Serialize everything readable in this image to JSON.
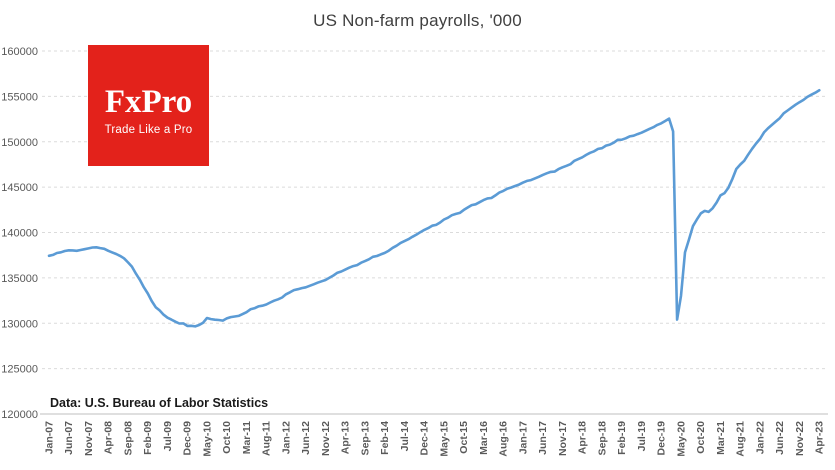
{
  "title": "US Non-farm payrolls, '000",
  "source_note": "Data: U.S. Bureau of Labor Statistics",
  "logo": {
    "name": "FxPro",
    "tagline": "Trade Like a Pro",
    "background_color": "#e3221b",
    "text_color": "#ffffff"
  },
  "chart_data": {
    "type": "line",
    "title": "US Non-farm payrolls, '000",
    "xlabel": "",
    "ylabel": "",
    "x_start": "Jan-07",
    "x_end": "Apr-23",
    "x_frequency": "monthly",
    "x_tick_interval_months": 5,
    "x_tick_labels": [
      "Jan-07",
      "Jun-07",
      "Nov-07",
      "Apr-08",
      "Sep-08",
      "Feb-09",
      "Jul-09",
      "Dec-09",
      "May-10",
      "Oct-10",
      "Mar-11",
      "Aug-11",
      "Jan-12",
      "Jun-12",
      "Nov-12",
      "Apr-13",
      "Sep-13",
      "Feb-14",
      "Jul-14",
      "Dec-14",
      "May-15",
      "Oct-15",
      "Mar-16",
      "Aug-16",
      "Jan-17",
      "Jun-17",
      "Nov-17",
      "Apr-18",
      "Sep-18",
      "Feb-19",
      "Jul-19",
      "Dec-19",
      "May-20",
      "Oct-20",
      "Mar-21",
      "Aug-21",
      "Jan-22",
      "Jun-22",
      "Nov-22",
      "Apr-23"
    ],
    "ylim": [
      120000,
      160000
    ],
    "y_ticks": [
      120000,
      125000,
      130000,
      135000,
      140000,
      145000,
      150000,
      155000,
      160000
    ],
    "grid": "horizontal-dashed",
    "legend": "none",
    "line_color": "#5b9bd5",
    "gridline_color": "#dbdbdb",
    "axis_line_color": "#bfbfbf",
    "axis_text_color": "#595959",
    "title_color": "#404040",
    "values": [
      137437,
      137529,
      137738,
      137816,
      137959,
      138037,
      138031,
      137986,
      138072,
      138155,
      138252,
      138350,
      138365,
      138279,
      138199,
      137985,
      137803,
      137631,
      137421,
      137162,
      136709,
      136239,
      135466,
      134774,
      133976,
      133275,
      132449,
      131765,
      131411,
      130944,
      130617,
      130401,
      130174,
      129976,
      129987,
      129705,
      129721,
      129655,
      129811,
      130062,
      130578,
      130456,
      130395,
      130353,
      130296,
      130537,
      130674,
      130745,
      130815,
      131007,
      131219,
      131541,
      131643,
      131855,
      131935,
      132061,
      132285,
      132490,
      132636,
      132842,
      133188,
      133414,
      133657,
      133753,
      133878,
      133966,
      134123,
      134293,
      134468,
      134622,
      134771,
      135012,
      135261,
      135572,
      135702,
      135914,
      136126,
      136298,
      136403,
      136672,
      136851,
      137052,
      137326,
      137410,
      137589,
      137757,
      137991,
      138316,
      138545,
      138849,
      139053,
      139262,
      139530,
      139773,
      140029,
      140281,
      140482,
      140749,
      140833,
      141104,
      141434,
      141626,
      141901,
      142049,
      142163,
      142490,
      142754,
      143014,
      143102,
      143340,
      143571,
      143763,
      143806,
      144087,
      144398,
      144582,
      144831,
      144955,
      145119,
      145274,
      145494,
      145686,
      145773,
      145956,
      146136,
      146342,
      146520,
      146682,
      146712,
      146982,
      147187,
      147347,
      147525,
      147906,
      148093,
      148283,
      148552,
      148785,
      148951,
      149214,
      149294,
      149571,
      149681,
      149902,
      150218,
      150226,
      150375,
      150585,
      150670,
      150848,
      151001,
      151207,
      151415,
      151601,
      151862,
      152038,
      152284,
      152554,
      151140,
      130403,
      133028,
      137802,
      139206,
      140699,
      141426,
      142106,
      142375,
      142270,
      142669,
      143302,
      144083,
      144346,
      144937,
      145902,
      147002,
      147498,
      147898,
      148576,
      149224,
      149812,
      150316,
      151031,
      151469,
      151852,
      152231,
      152611,
      153137,
      153448,
      153759,
      154087,
      154357,
      154609,
      154939,
      155187,
      155404,
      155673
    ]
  }
}
